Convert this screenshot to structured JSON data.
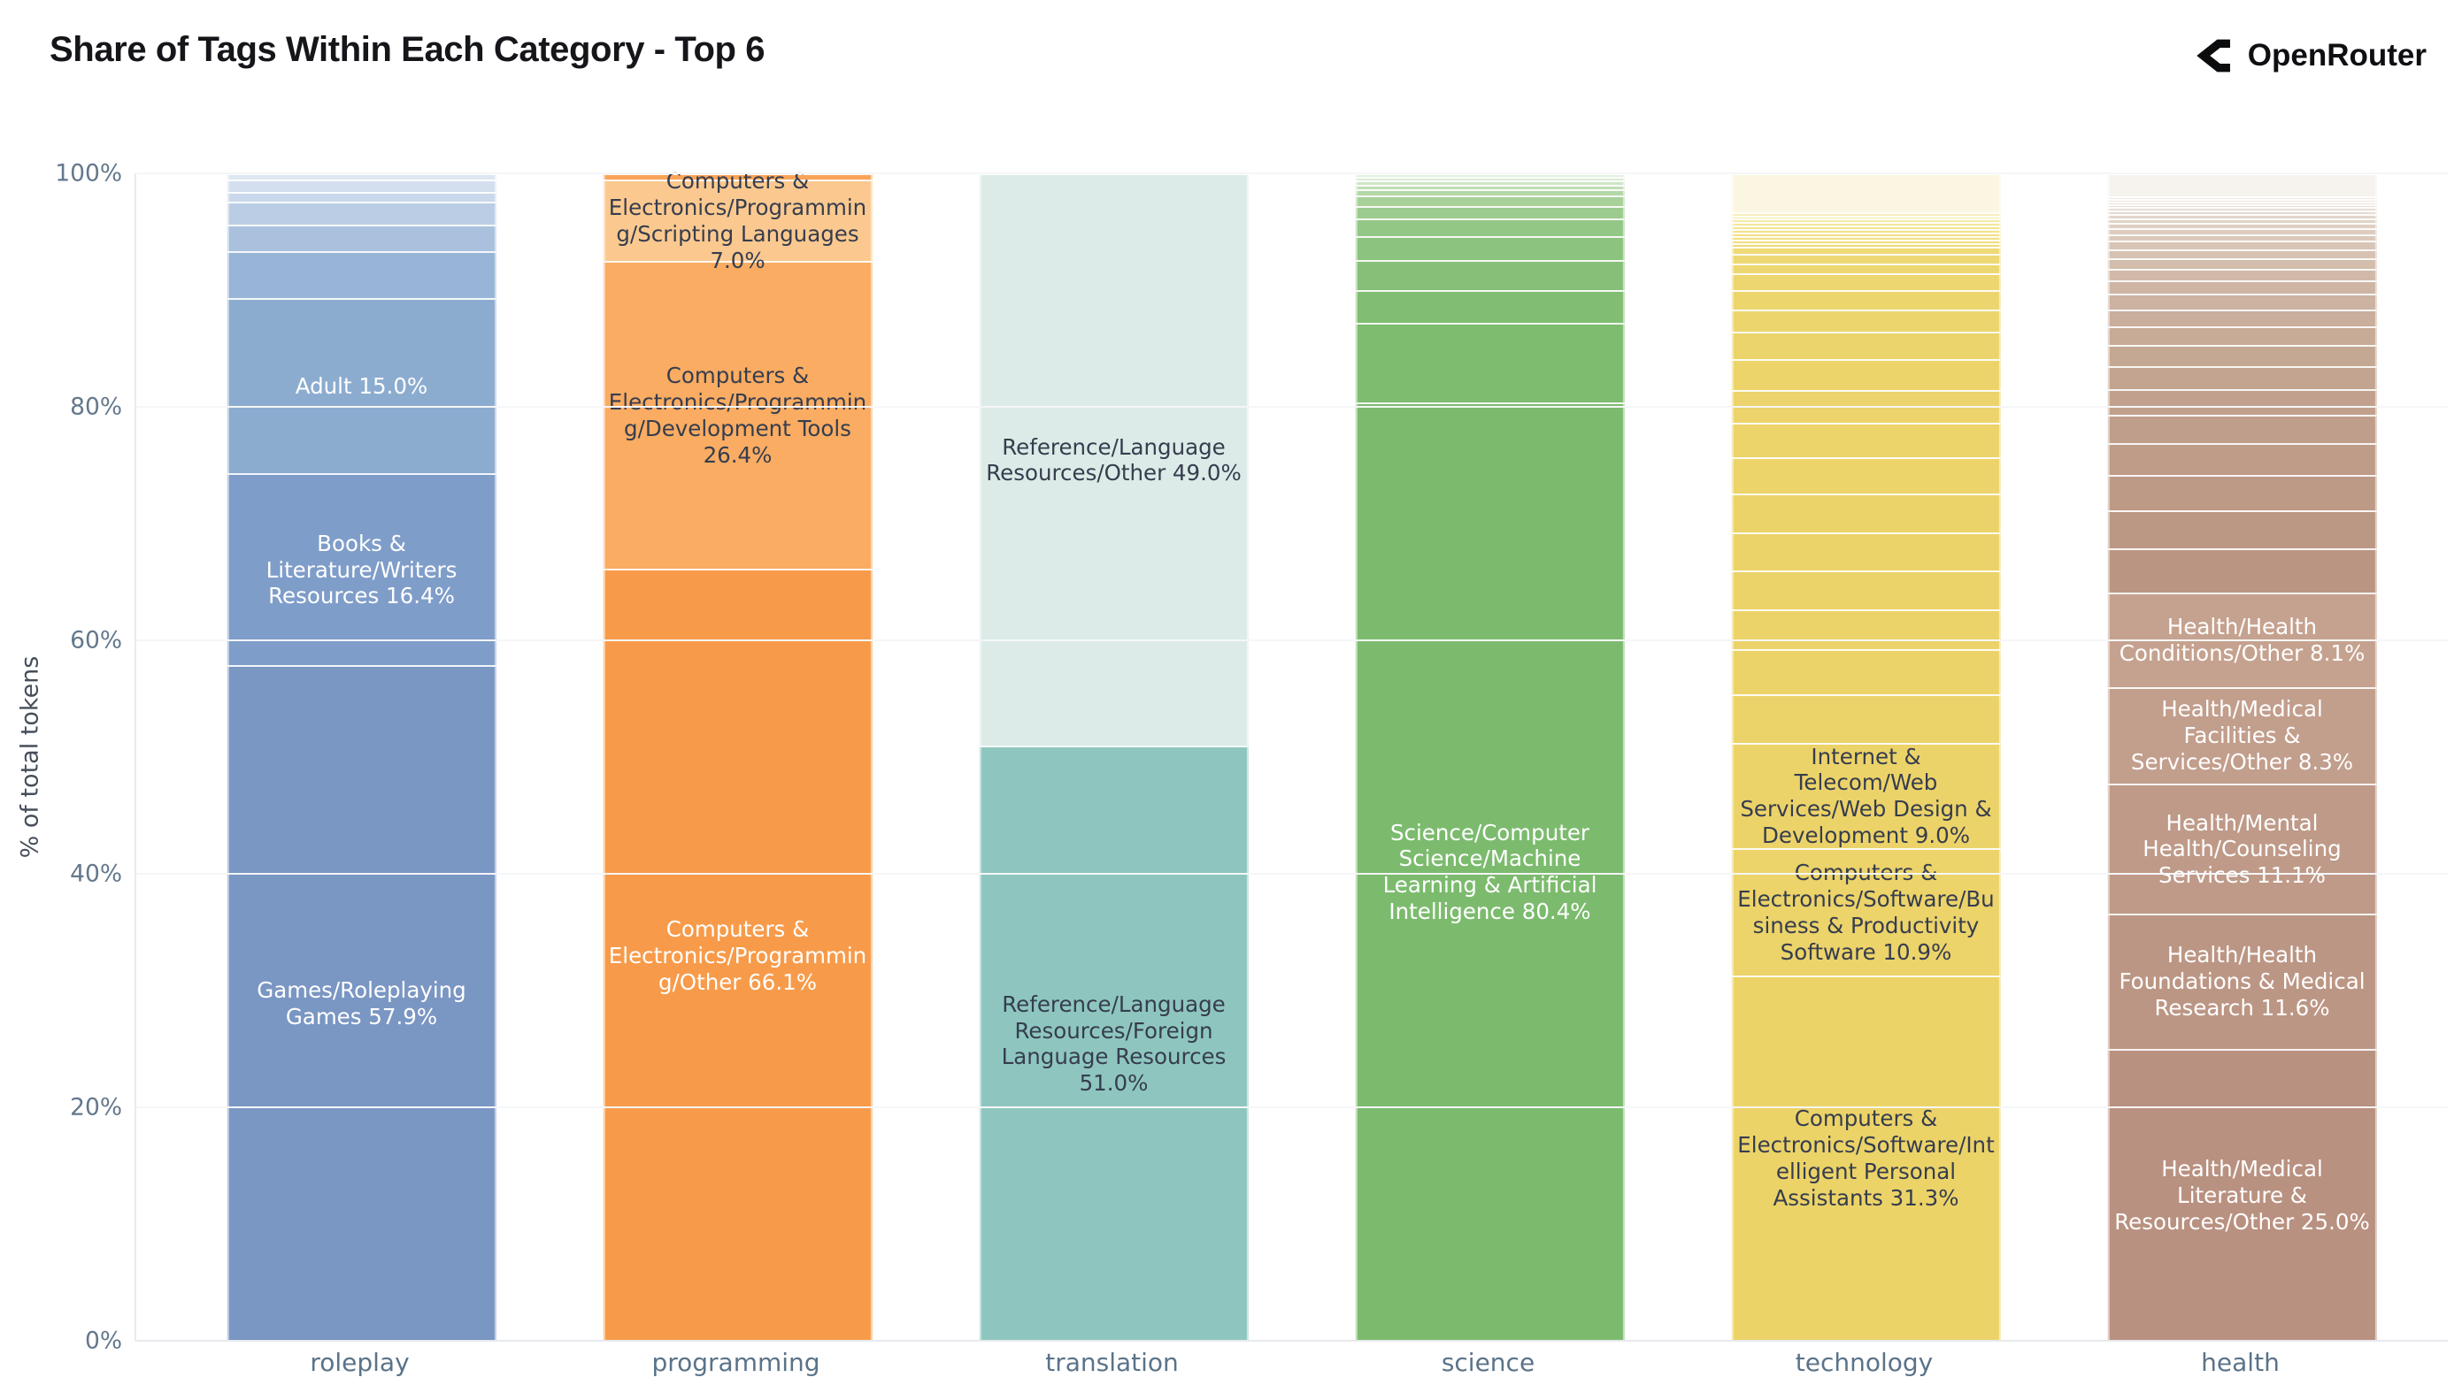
{
  "page": {
    "brand": "OpenRouter"
  },
  "chart_data": {
    "type": "bar",
    "stacked": true,
    "title": "Share of Tags Within Each Category - Top 6",
    "ylabel": "% of total tokens",
    "ylim": [
      0,
      100
    ],
    "grid": true,
    "legend": "none",
    "yticks": [
      {
        "value": 0,
        "label": "0%"
      },
      {
        "value": 20,
        "label": "20%"
      },
      {
        "value": 40,
        "label": "40%"
      },
      {
        "value": 60,
        "label": "60%"
      },
      {
        "value": 80,
        "label": "80%"
      },
      {
        "value": 100,
        "label": "100%"
      }
    ],
    "categories": [
      "roleplay",
      "programming",
      "translation",
      "science",
      "technology",
      "health"
    ],
    "bars": [
      {
        "category": "roleplay",
        "segments": [
          {
            "v": 0.5,
            "c": "#dde7f2"
          },
          {
            "v": 1.1,
            "c": "#d3dfee"
          },
          {
            "v": 0.8,
            "c": "#c9d8ea"
          },
          {
            "v": 2.0,
            "c": "#bacde4"
          },
          {
            "v": 2.3,
            "c": "#a9c1dd"
          },
          {
            "v": 4.0,
            "c": "#98b4d6"
          },
          {
            "v": 15.0,
            "c": "#8caccf",
            "label": "Adult 15.0%",
            "tc": "#ffffff"
          },
          {
            "v": 16.4,
            "c": "#7f9dc9",
            "label": "Books & Literature/Writers Resources 16.4%",
            "tc": "#ffffff"
          },
          {
            "v": 57.9,
            "c": "#7a96c3",
            "label": "Games/Roleplaying Games 57.9%",
            "tc": "#ffffff"
          }
        ]
      },
      {
        "category": "programming",
        "segments": [
          {
            "v": 0.5,
            "c": "#f8a458"
          },
          {
            "v": 7.0,
            "c": "#fbc98f",
            "label": "Computers & Electronics/Programming/Scripting Languages 7.0%",
            "tc": "#363d4e"
          },
          {
            "v": 26.4,
            "c": "#f9ac62",
            "label": "Computers & Electronics/Programming/Development Tools 26.4%",
            "tc": "#363d4e"
          },
          {
            "v": 66.1,
            "c": "#f79b4a",
            "label": "Computers & Electronics/Programming/Other 66.1%",
            "tc": "#ffffff"
          }
        ]
      },
      {
        "category": "translation",
        "segments": [
          {
            "v": 49.0,
            "c": "#dcebe7",
            "label": "Reference/Language Resources/Other 49.0%",
            "tc": "#363d4e"
          },
          {
            "v": 51.0,
            "c": "#8ec6bf",
            "label": "Reference/Language Resources/Foreign Language Resources 51.0%",
            "tc": "#363d4e"
          }
        ]
      },
      {
        "category": "science",
        "segments": [
          {
            "v": 0.3,
            "c": "#e3f1df"
          },
          {
            "v": 0.3,
            "c": "#d8ebd2"
          },
          {
            "v": 0.4,
            "c": "#cde5c5"
          },
          {
            "v": 0.4,
            "c": "#c0deb6"
          },
          {
            "v": 0.5,
            "c": "#b3d7a7"
          },
          {
            "v": 0.9,
            "c": "#a7d199"
          },
          {
            "v": 1.1,
            "c": "#9ccb8e"
          },
          {
            "v": 1.5,
            "c": "#93c785"
          },
          {
            "v": 2.0,
            "c": "#8cc37e"
          },
          {
            "v": 2.6,
            "c": "#86c078"
          },
          {
            "v": 2.8,
            "c": "#81be73"
          },
          {
            "v": 6.8,
            "c": "#7ebc70"
          },
          {
            "v": 80.4,
            "c": "#7cbb6e",
            "label": "Science/Computer Science/Machine Learning & Artificial Intelligence 80.4%",
            "tc": "#ffffff"
          }
        ]
      },
      {
        "category": "technology",
        "segments": [
          {
            "v": 3.3,
            "c": "#faf6e2"
          },
          {
            "v": 0.3,
            "c": "#f7efbd"
          },
          {
            "v": 0.3,
            "c": "#f6ecb1"
          },
          {
            "v": 0.3,
            "c": "#f5eaa7"
          },
          {
            "v": 0.3,
            "c": "#f4e79e"
          },
          {
            "v": 0.3,
            "c": "#f3e596"
          },
          {
            "v": 0.3,
            "c": "#f2e38f"
          },
          {
            "v": 0.3,
            "c": "#f1e189"
          },
          {
            "v": 0.3,
            "c": "#f0df83"
          },
          {
            "v": 0.3,
            "c": "#efdd7e"
          },
          {
            "v": 0.3,
            "c": "#efdb7a"
          },
          {
            "v": 0.6,
            "c": "#eeda76"
          },
          {
            "v": 0.85,
            "c": "#eed873"
          },
          {
            "v": 0.85,
            "c": "#edd771"
          },
          {
            "v": 1.4,
            "c": "#edd66f"
          },
          {
            "v": 1.65,
            "c": "#edd56e"
          },
          {
            "v": 1.9,
            "c": "#ecd56d"
          },
          {
            "v": 2.4,
            "c": "#ecd46c"
          },
          {
            "v": 2.6,
            "c": "#ecd46b"
          },
          {
            "v": 2.8,
            "c": "#ecd36b"
          },
          {
            "v": 3.0,
            "c": "#ecd36a"
          },
          {
            "v": 3.1,
            "c": "#ecd36a"
          },
          {
            "v": 3.3,
            "c": "#ecd369"
          },
          {
            "v": 3.3,
            "c": "#ecd369"
          },
          {
            "v": 3.35,
            "c": "#ecd369"
          },
          {
            "v": 3.4,
            "c": "#ecd369"
          },
          {
            "v": 3.8,
            "c": "#ecd369"
          },
          {
            "v": 4.2,
            "c": "#ecd369"
          },
          {
            "v": 9.0,
            "c": "#ecd369",
            "label": "Internet & Telecom/Web Services/Web Design & Development 9.0%",
            "tc": "#363d4e"
          },
          {
            "v": 10.9,
            "c": "#ecd36a",
            "label": "Computers & Electronics/Software/Business & Productivity Software 10.9%",
            "tc": "#363d4e"
          },
          {
            "v": 31.3,
            "c": "#ecd368",
            "label": "Computers & Electronics/Software/Intelligent Personal Assistants 31.3%",
            "tc": "#363d4e"
          }
        ]
      },
      {
        "category": "health",
        "segments": [
          {
            "v": 2.0,
            "c": "#f6f2ee"
          },
          {
            "v": 0.2,
            "c": "#efe9e3"
          },
          {
            "v": 0.2,
            "c": "#ede6df"
          },
          {
            "v": 0.25,
            "c": "#ebe3db"
          },
          {
            "v": 0.25,
            "c": "#e9e0d7"
          },
          {
            "v": 0.3,
            "c": "#e7ddd3"
          },
          {
            "v": 0.3,
            "c": "#e5dacf"
          },
          {
            "v": 0.35,
            "c": "#e3d6cb"
          },
          {
            "v": 0.4,
            "c": "#e1d3c7"
          },
          {
            "v": 0.45,
            "c": "#dfd0c3"
          },
          {
            "v": 0.5,
            "c": "#ddccbf"
          },
          {
            "v": 0.6,
            "c": "#dbc9bb"
          },
          {
            "v": 0.7,
            "c": "#d8c5b6"
          },
          {
            "v": 0.8,
            "c": "#d6c1b2"
          },
          {
            "v": 0.9,
            "c": "#d3bdad"
          },
          {
            "v": 1.0,
            "c": "#d1b9a9"
          },
          {
            "v": 1.15,
            "c": "#ceb5a4"
          },
          {
            "v": 1.3,
            "c": "#ccb2a0"
          },
          {
            "v": 1.45,
            "c": "#c9ae9b"
          },
          {
            "v": 1.6,
            "c": "#c7ab97"
          },
          {
            "v": 1.8,
            "c": "#c5a893"
          },
          {
            "v": 2.0,
            "c": "#c3a490"
          },
          {
            "v": 2.2,
            "c": "#c1a18d"
          },
          {
            "v": 2.45,
            "c": "#bf9f8b"
          },
          {
            "v": 2.7,
            "c": "#be9c88"
          },
          {
            "v": 3.0,
            "c": "#bc9a86"
          },
          {
            "v": 3.3,
            "c": "#bb9884"
          },
          {
            "v": 3.75,
            "c": "#ba9682"
          },
          {
            "v": 8.1,
            "c": "#c5a28f",
            "label": "Health/Health Conditions/Other 8.1%",
            "tc": "#ffffff"
          },
          {
            "v": 8.3,
            "c": "#c29e8c",
            "label": "Health/Medical Facilities & Services/Other 8.3%",
            "tc": "#ffffff"
          },
          {
            "v": 11.1,
            "c": "#bf9a88",
            "label": "Health/Mental Health/Counseling Services 11.1%",
            "tc": "#ffffff"
          },
          {
            "v": 11.6,
            "c": "#bc9684",
            "label": "Health/Health Foundations & Medical Research 11.6%",
            "tc": "#ffffff"
          },
          {
            "v": 25.0,
            "c": "#b99180",
            "label": "Health/Medical Literature & Resources/Other 25.0%",
            "tc": "#ffffff"
          }
        ]
      }
    ]
  }
}
